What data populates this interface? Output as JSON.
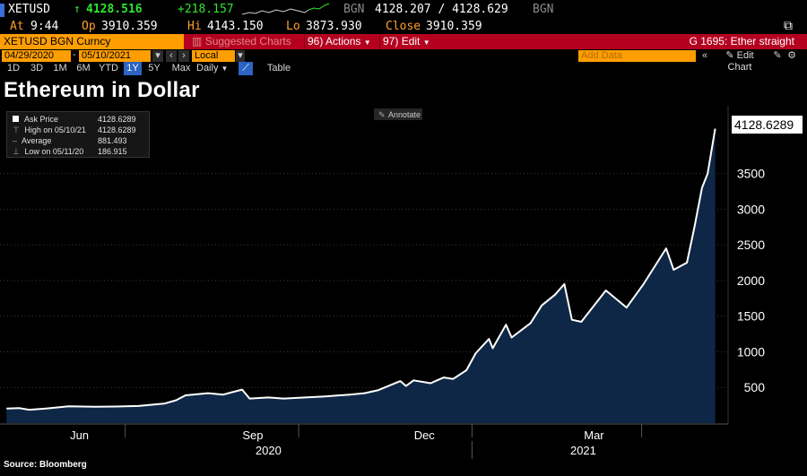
{
  "header": {
    "ticker": "XETUSD",
    "last_arrow": "↑",
    "last_price": "4128.516",
    "change": "+218.157",
    "bid_source": "BGN",
    "bid_ask": "4128.207 / 4128.629",
    "ask_source": "BGN",
    "at_label": "At",
    "at_time": "9:44",
    "open_label": "Op",
    "open_value": "3910.359",
    "high_label": "Hi",
    "high_value": "4143.150",
    "low_label": "Lo",
    "low_value": "3873.930",
    "close_label": "Close",
    "close_value": "3910.359"
  },
  "toolbar": {
    "security": "XETUSD BGN Curncy",
    "suggested_charts": "Suggested Charts",
    "actions_num": "96)",
    "actions": "Actions",
    "edit_num": "97)",
    "edit": "Edit",
    "function_title": "G 1695: Ether straight"
  },
  "range": {
    "start_date": "04/29/2020",
    "end_date": "05/10/2021",
    "currency": "Local CCY",
    "add_data": "Add Data",
    "edit_chart": "Edit Chart"
  },
  "periods": {
    "items": [
      "1D",
      "3D",
      "1M",
      "6M",
      "YTD",
      "1Y",
      "5Y",
      "Max"
    ],
    "active": "1Y",
    "frequency": "Daily",
    "table": "Table"
  },
  "legend": {
    "ask_label": "Ask Price",
    "ask_value": "4128.6289",
    "high_label": "High on 05/10/21",
    "high_value": "4128.6289",
    "avg_label": "Average",
    "avg_value": "881.493",
    "low_label": "Low on 05/11/20",
    "low_value": "186.915"
  },
  "annotate_label": "Annotate",
  "source": "Source: Bloomberg",
  "colors": {
    "amber": "#ffa028",
    "red_bar": "#b5001f",
    "area_fill": "#0f2746",
    "line": "#ffffff"
  },
  "chart_data": {
    "type": "area",
    "title": "Ethereum in Dollar",
    "series_name": "Ask Price",
    "last_value_label": "4128.6289",
    "xlabel": "",
    "ylabel": "",
    "ylim": [
      0,
      4450
    ],
    "yticks": [
      500,
      1000,
      1500,
      2000,
      2500,
      3000,
      3500
    ],
    "x_tick_labels": [
      "Jun",
      "Sep",
      "Dec",
      "Mar"
    ],
    "x_year_labels": [
      "2020",
      "2021"
    ],
    "x": [
      "2020-04-29",
      "2020-05-06",
      "2020-05-11",
      "2020-05-20",
      "2020-06-01",
      "2020-06-15",
      "2020-06-26",
      "2020-07-08",
      "2020-07-22",
      "2020-07-28",
      "2020-08-02",
      "2020-08-14",
      "2020-08-22",
      "2020-09-01",
      "2020-09-05",
      "2020-09-15",
      "2020-09-23",
      "2020-10-01",
      "2020-10-15",
      "2020-10-28",
      "2020-11-05",
      "2020-11-12",
      "2020-11-24",
      "2020-11-27",
      "2020-12-01",
      "2020-12-10",
      "2020-12-17",
      "2020-12-22",
      "2020-12-29",
      "2021-01-03",
      "2021-01-10",
      "2021-01-12",
      "2021-01-19",
      "2021-01-22",
      "2021-02-01",
      "2021-02-07",
      "2021-02-14",
      "2021-02-19",
      "2021-02-23",
      "2021-02-28",
      "2021-03-13",
      "2021-03-24",
      "2021-04-02",
      "2021-04-14",
      "2021-04-18",
      "2021-04-25",
      "2021-04-29",
      "2021-05-03",
      "2021-05-06",
      "2021-05-10"
    ],
    "values": [
      205,
      210,
      187,
      205,
      235,
      230,
      232,
      240,
      275,
      320,
      390,
      420,
      400,
      470,
      345,
      360,
      345,
      355,
      375,
      400,
      420,
      460,
      590,
      520,
      600,
      560,
      640,
      620,
      740,
      980,
      1180,
      1050,
      1380,
      1200,
      1400,
      1650,
      1800,
      1950,
      1450,
      1420,
      1860,
      1620,
      1950,
      2450,
      2150,
      2250,
      2750,
      3300,
      3500,
      4128.6289
    ]
  }
}
